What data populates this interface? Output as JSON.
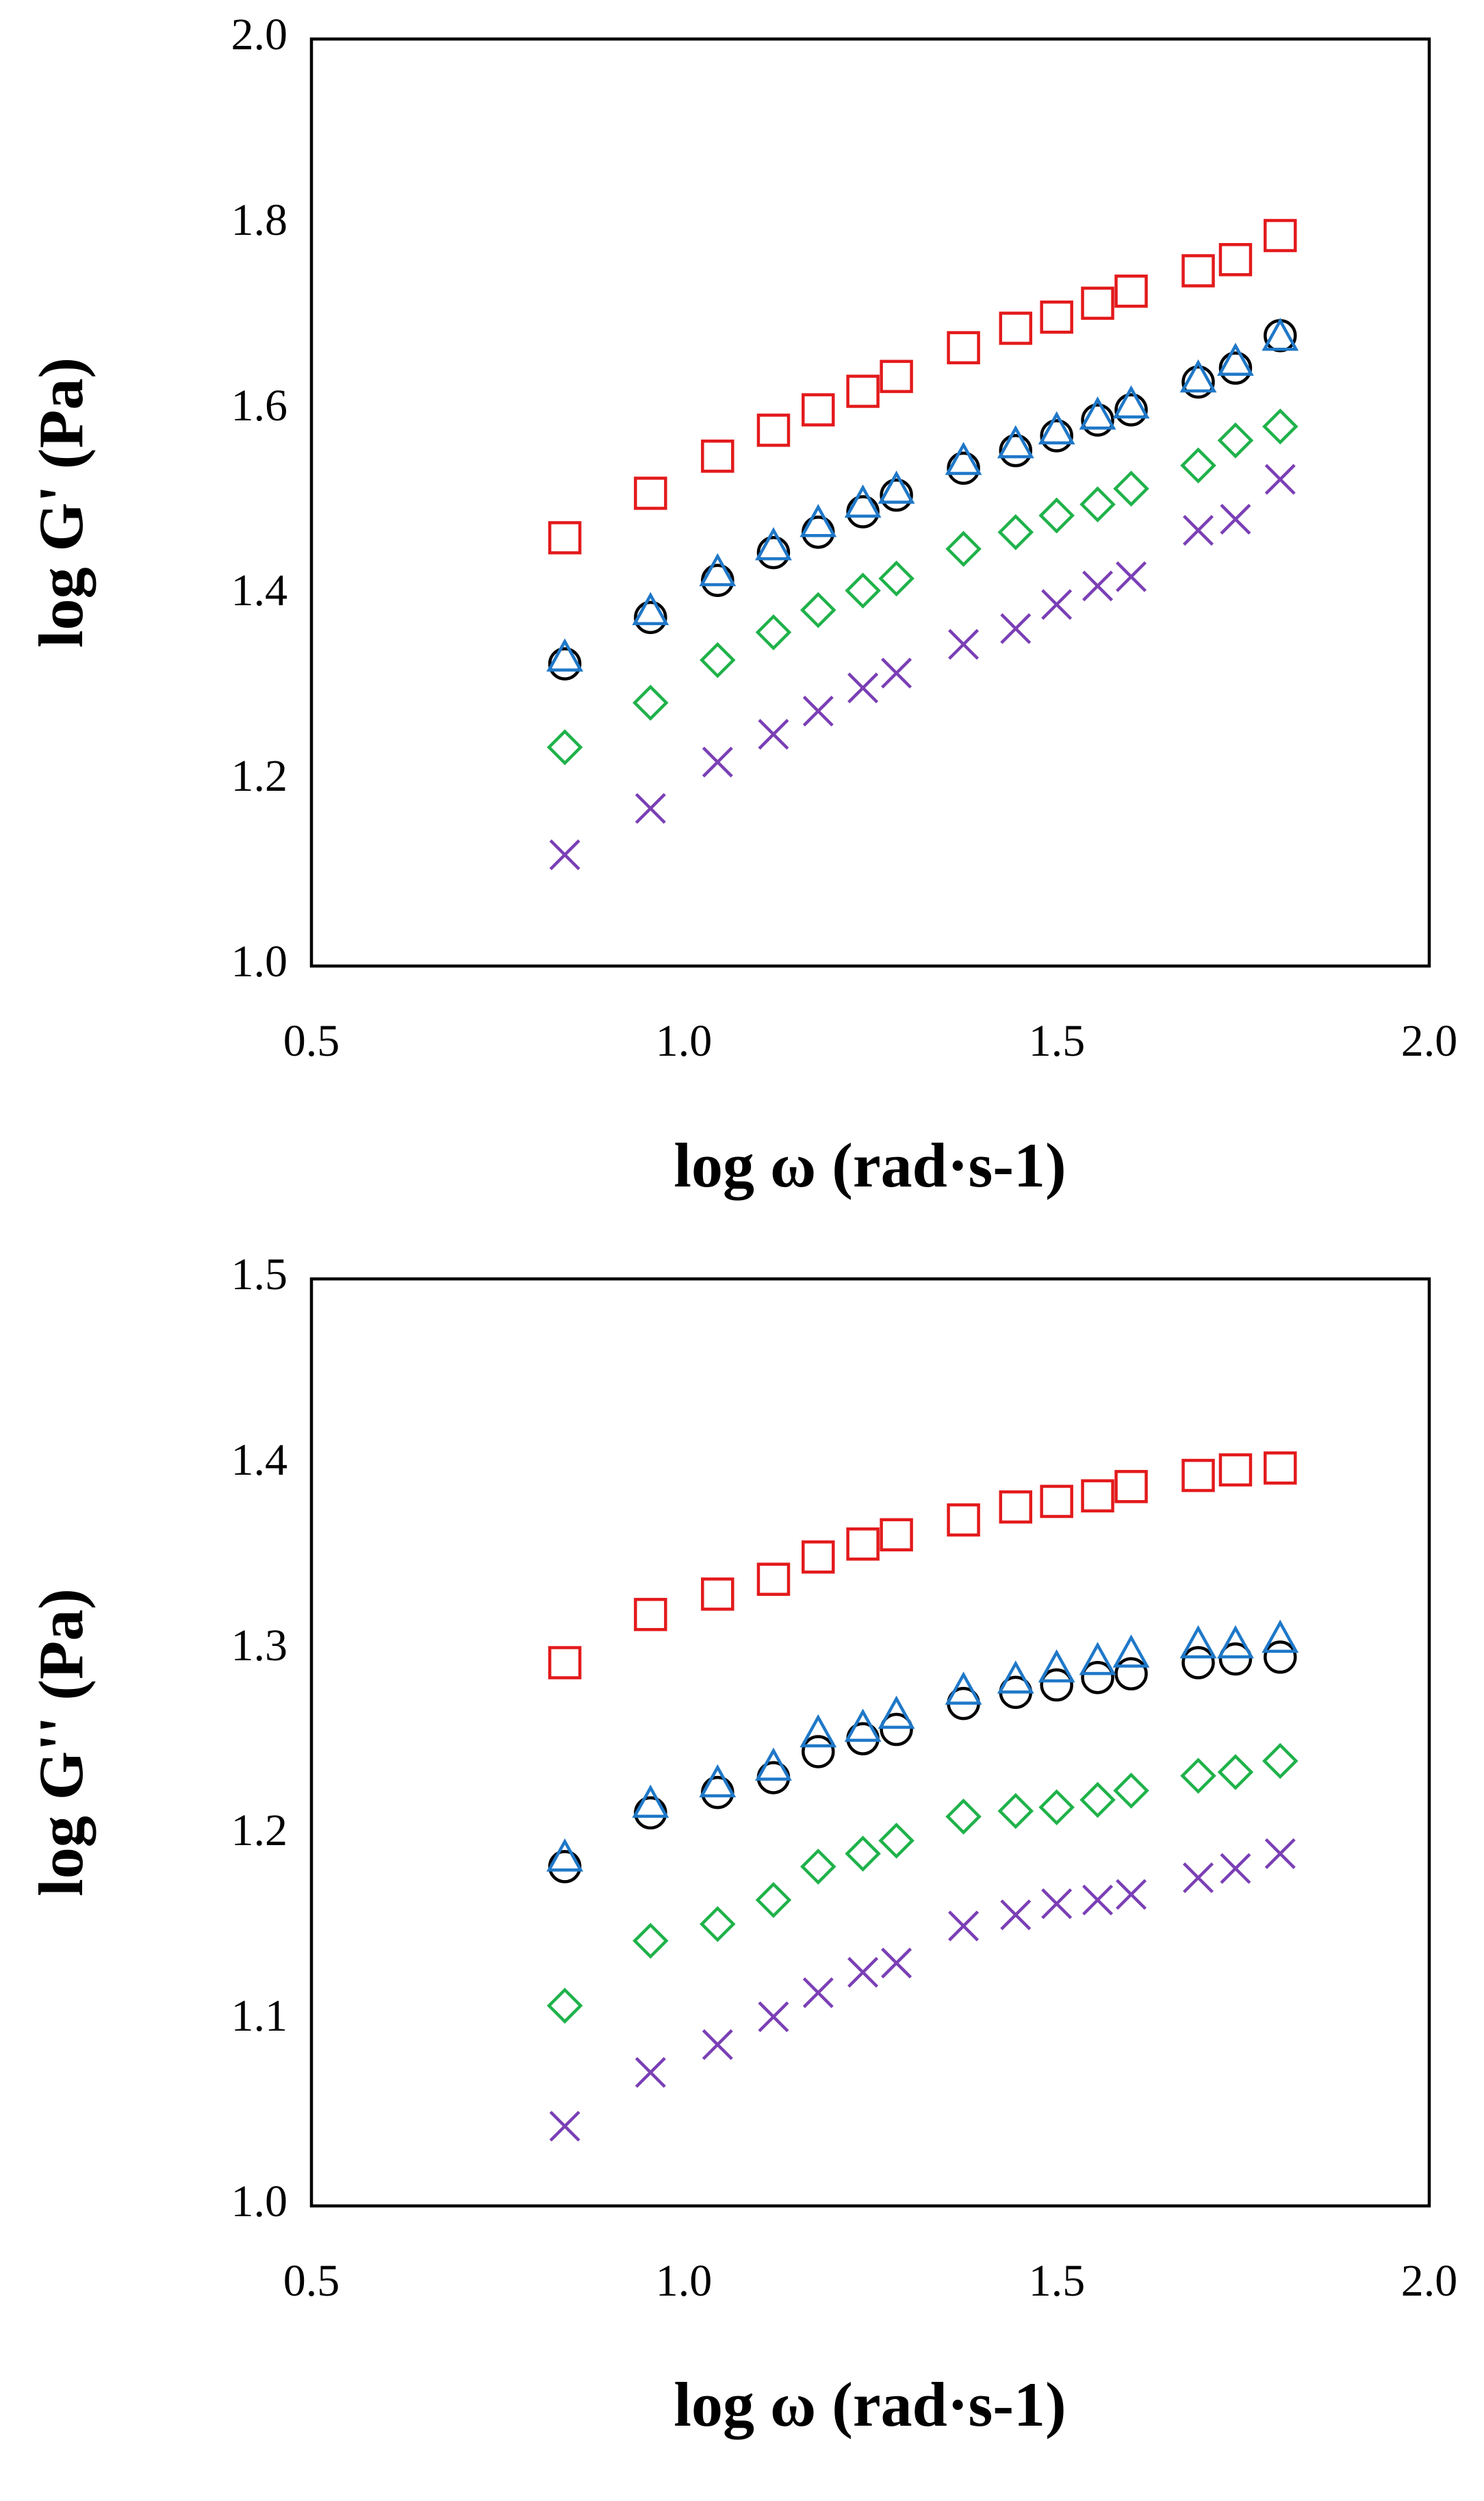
{
  "chart_data": [
    {
      "type": "scatter",
      "title": "",
      "xlabel": "log ω (rad·s-1)",
      "ylabel": "log G' (Pa)",
      "xlim": [
        0.5,
        2.0
      ],
      "ylim": [
        1.0,
        2.0
      ],
      "xticks": [
        "0.5",
        "1.0",
        "1.5",
        "2.0"
      ],
      "yticks": [
        "1.0",
        "1.2",
        "1.4",
        "1.6",
        "1.8",
        "2.0"
      ],
      "xtick_values": [
        0.5,
        1.0,
        1.5,
        2.0
      ],
      "ytick_values": [
        1.0,
        1.2,
        1.4,
        1.6,
        1.8,
        2.0
      ],
      "x": [
        0.84,
        0.955,
        1.045,
        1.12,
        1.18,
        1.24,
        1.285,
        1.375,
        1.445,
        1.5,
        1.555,
        1.6,
        1.69,
        1.74,
        1.8
      ],
      "series": [
        {
          "name": "square",
          "marker": "square",
          "color": "#e31a1c",
          "values": [
            1.462,
            1.51,
            1.55,
            1.578,
            1.6,
            1.62,
            1.636,
            1.667,
            1.688,
            1.7,
            1.715,
            1.728,
            1.75,
            1.762,
            1.788
          ]
        },
        {
          "name": "circle",
          "marker": "circle",
          "color": "#000000",
          "values": [
            1.326,
            1.376,
            1.416,
            1.446,
            1.468,
            1.49,
            1.508,
            1.537,
            1.556,
            1.572,
            1.589,
            1.6,
            1.63,
            1.645,
            1.68
          ]
        },
        {
          "name": "triangle",
          "marker": "triangle",
          "color": "#1f78c8",
          "values": [
            1.333,
            1.383,
            1.425,
            1.453,
            1.478,
            1.499,
            1.514,
            1.545,
            1.563,
            1.578,
            1.594,
            1.606,
            1.634,
            1.652,
            1.679
          ]
        },
        {
          "name": "diamond",
          "marker": "diamond",
          "color": "#1fb24a",
          "values": [
            1.236,
            1.284,
            1.33,
            1.36,
            1.384,
            1.405,
            1.418,
            1.45,
            1.468,
            1.486,
            1.498,
            1.515,
            1.54,
            1.567,
            1.582
          ]
        },
        {
          "name": "cross",
          "marker": "cross",
          "color": "#7b3fb5",
          "values": [
            1.12,
            1.17,
            1.22,
            1.25,
            1.275,
            1.3,
            1.316,
            1.347,
            1.364,
            1.39,
            1.41,
            1.42,
            1.47,
            1.482,
            1.525
          ]
        }
      ]
    },
    {
      "type": "scatter",
      "title": "",
      "xlabel": "log ω (rad·s-1)",
      "ylabel": "log G'' (Pa)",
      "xlim": [
        0.5,
        2.0
      ],
      "ylim": [
        1.0,
        1.5
      ],
      "xticks": [
        "0.5",
        "1.0",
        "1.5",
        "2.0"
      ],
      "yticks": [
        "1.0",
        "1.1",
        "1.2",
        "1.3",
        "1.4",
        "1.5"
      ],
      "xtick_values": [
        0.5,
        1.0,
        1.5,
        2.0
      ],
      "ytick_values": [
        1.0,
        1.1,
        1.2,
        1.3,
        1.4,
        1.5
      ],
      "x": [
        0.84,
        0.955,
        1.045,
        1.12,
        1.18,
        1.24,
        1.285,
        1.375,
        1.445,
        1.5,
        1.555,
        1.6,
        1.69,
        1.74,
        1.8
      ],
      "series": [
        {
          "name": "square",
          "marker": "square",
          "color": "#e31a1c",
          "values": [
            1.293,
            1.319,
            1.33,
            1.338,
            1.35,
            1.357,
            1.362,
            1.37,
            1.377,
            1.38,
            1.383,
            1.388,
            1.394,
            1.397,
            1.398
          ]
        },
        {
          "name": "circle",
          "marker": "circle",
          "color": "#000000",
          "values": [
            1.183,
            1.212,
            1.223,
            1.231,
            1.245,
            1.252,
            1.257,
            1.271,
            1.277,
            1.281,
            1.285,
            1.287,
            1.293,
            1.295,
            1.296
          ]
        },
        {
          "name": "triangle",
          "marker": "triangle",
          "color": "#1f78c8",
          "values": [
            1.188,
            1.217,
            1.228,
            1.237,
            1.255,
            1.258,
            1.265,
            1.278,
            1.284,
            1.29,
            1.294,
            1.298,
            1.303,
            1.303,
            1.306
          ]
        },
        {
          "name": "diamond",
          "marker": "diamond",
          "color": "#1fb24a",
          "values": [
            1.108,
            1.143,
            1.152,
            1.165,
            1.183,
            1.19,
            1.197,
            1.21,
            1.213,
            1.215,
            1.219,
            1.224,
            1.232,
            1.234,
            1.24
          ]
        },
        {
          "name": "cross",
          "marker": "cross",
          "color": "#7b3fb5",
          "values": [
            1.043,
            1.072,
            1.087,
            1.102,
            1.115,
            1.126,
            1.131,
            1.151,
            1.157,
            1.163,
            1.165,
            1.168,
            1.177,
            1.182,
            1.19
          ]
        }
      ]
    }
  ]
}
